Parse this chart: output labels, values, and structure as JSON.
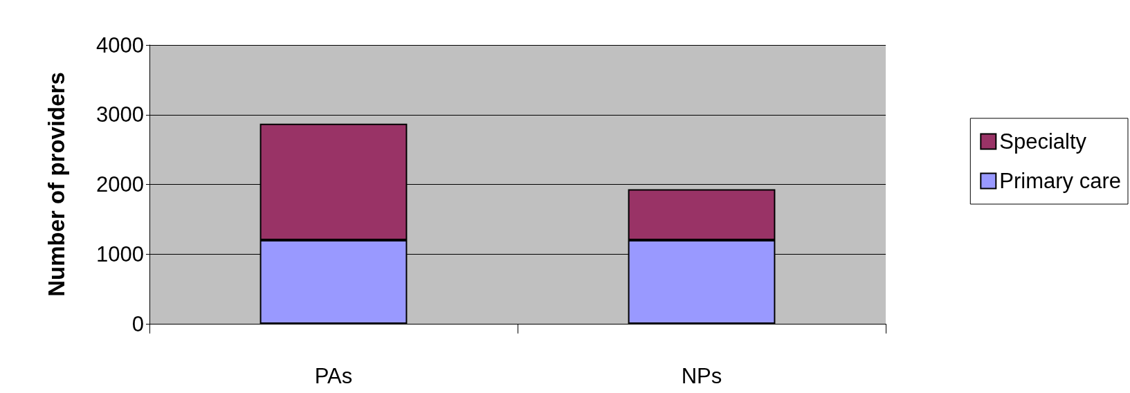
{
  "chart_data": {
    "type": "bar",
    "ylabel": "Number of providers",
    "categories": [
      "PAs",
      "NPs"
    ],
    "series": [
      {
        "name": "Primary care",
        "color": "#9999ff",
        "values": [
          1200,
          1200
        ]
      },
      {
        "name": "Specialty",
        "color": "#993366",
        "values": [
          1670,
          730
        ]
      }
    ],
    "stacked": true,
    "ylim": [
      0,
      4000
    ],
    "yticks": [
      0,
      1000,
      2000,
      3000,
      4000
    ],
    "grid": "y",
    "legend": "right"
  }
}
